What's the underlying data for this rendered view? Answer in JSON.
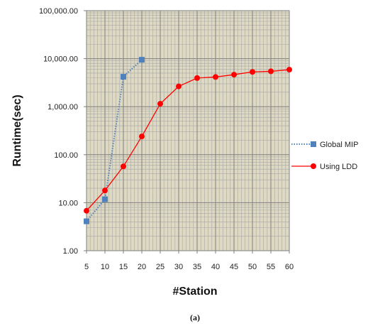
{
  "chart_data": {
    "type": "line",
    "x_scale": "linear",
    "y_scale": "log",
    "xlabel": "#Station",
    "ylabel": "Runtime(sec)",
    "x_ticks": [
      "5",
      "10",
      "15",
      "20",
      "25",
      "30",
      "35",
      "40",
      "45",
      "50",
      "55",
      "60"
    ],
    "y_ticks": [
      "1.00",
      "10.00",
      "100.00",
      "1,000.00",
      "10,000.00",
      "100,000.00"
    ],
    "xlim": [
      5,
      60
    ],
    "ylim": [
      1,
      100000
    ],
    "grid": true,
    "legend_position": "right",
    "series": [
      {
        "name": "Global MIP",
        "color": "#4f81bd",
        "line_style": "dotted",
        "marker": "square",
        "x": [
          5,
          10,
          15,
          20
        ],
        "values": [
          4.1,
          11.8,
          4200,
          9500
        ]
      },
      {
        "name": "Using LDD",
        "color": "#ff0000",
        "line_style": "solid",
        "marker": "circle",
        "x": [
          5,
          10,
          15,
          20,
          25,
          30,
          35,
          40,
          45,
          50,
          55,
          60
        ],
        "values": [
          6.8,
          18,
          57,
          240,
          1150,
          2650,
          3950,
          4150,
          4650,
          5300,
          5450,
          5900
        ]
      }
    ],
    "caption": "(a)"
  }
}
